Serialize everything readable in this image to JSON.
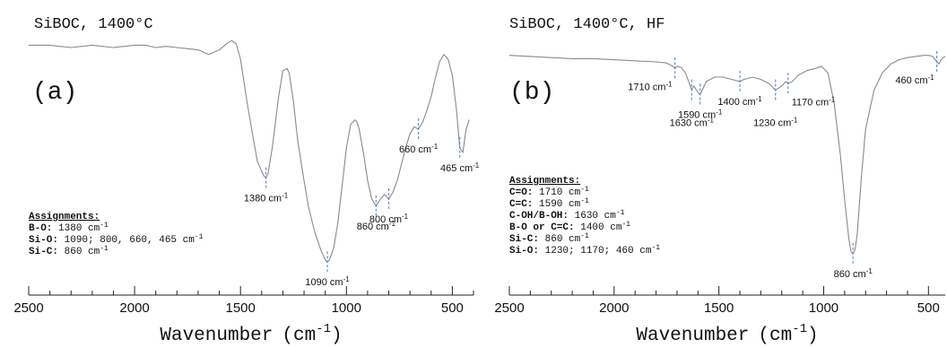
{
  "chart_data": [
    {
      "type": "line",
      "id": "a",
      "title": "SiBOC, 1400°C",
      "panel_label": "(a)",
      "xlabel": "Wavenumber",
      "xlabel_unit": "(cm",
      "xlabel_exp": "-1",
      "xlabel_close": ")",
      "xlim": [
        2500,
        400
      ],
      "x_reversed": true,
      "ylim": [
        0,
        1
      ],
      "yaxis_shown": false,
      "grid": false,
      "ticks": [
        "2500",
        "2000",
        "1500",
        "1000",
        "500"
      ],
      "tick_values": [
        2500,
        2000,
        1500,
        1000,
        500
      ],
      "series": [
        {
          "x": [
            2500,
            2400,
            2300,
            2200,
            2100,
            2000,
            1950,
            1900,
            1850,
            1800,
            1750,
            1700,
            1650,
            1600,
            1560,
            1540,
            1520,
            1500,
            1470,
            1440,
            1420,
            1400,
            1390,
            1380,
            1370,
            1350,
            1320,
            1300,
            1280,
            1270,
            1250,
            1230,
            1200,
            1180,
            1150,
            1120,
            1100,
            1090,
            1080,
            1060,
            1040,
            1020,
            1000,
            980,
            960,
            950,
            940,
            920,
            900,
            880,
            860,
            840,
            820,
            800,
            780,
            760,
            740,
            720,
            700,
            680,
            660,
            640,
            620,
            600,
            580,
            560,
            540,
            520,
            500,
            480,
            465,
            450,
            435,
            420
          ],
          "y": [
            0.96,
            0.96,
            0.95,
            0.96,
            0.95,
            0.96,
            0.96,
            0.95,
            0.955,
            0.95,
            0.945,
            0.94,
            0.92,
            0.94,
            0.97,
            0.98,
            0.965,
            0.9,
            0.72,
            0.56,
            0.46,
            0.42,
            0.4,
            0.39,
            0.41,
            0.52,
            0.74,
            0.85,
            0.86,
            0.84,
            0.72,
            0.55,
            0.38,
            0.27,
            0.16,
            0.08,
            0.04,
            0.03,
            0.04,
            0.09,
            0.2,
            0.36,
            0.52,
            0.62,
            0.64,
            0.63,
            0.6,
            0.5,
            0.38,
            0.3,
            0.27,
            0.3,
            0.32,
            0.3,
            0.33,
            0.38,
            0.45,
            0.52,
            0.58,
            0.61,
            0.6,
            0.63,
            0.68,
            0.74,
            0.82,
            0.89,
            0.92,
            0.9,
            0.83,
            0.68,
            0.52,
            0.5,
            0.6,
            0.64
          ]
        }
      ],
      "annotations": [
        {
          "x": 1380,
          "y": 0.39,
          "label": "1380 cm",
          "sup": "-1",
          "side": "below"
        },
        {
          "x": 1090,
          "y": 0.03,
          "label": "1090 cm",
          "sup": "-1",
          "side": "below"
        },
        {
          "x": 860,
          "y": 0.27,
          "label": "860 cm",
          "sup": "-1",
          "side": "below"
        },
        {
          "x": 800,
          "y": 0.3,
          "label": "800 cm",
          "sup": "-1",
          "side": "below"
        },
        {
          "x": 660,
          "y": 0.6,
          "label": "660 cm",
          "sup": "-1",
          "side": "below"
        },
        {
          "x": 465,
          "y": 0.52,
          "label": "465 cm",
          "sup": "-1",
          "side": "below"
        }
      ],
      "assignments": {
        "heading": "Assignments:",
        "items": [
          {
            "key": "B-O:",
            "value": " 1380 cm",
            "sup": "-1"
          },
          {
            "key": "Si-O:",
            "value": " 1090; 800, 660, 465 cm",
            "sup": "-1"
          },
          {
            "key": "Si-C:",
            "value": " 860 cm",
            "sup": "-1"
          }
        ]
      }
    },
    {
      "type": "line",
      "id": "b",
      "title": "SiBOC, 1400°C, HF",
      "panel_label": "(b)",
      "xlabel": "Wavenumber",
      "xlabel_unit": "(cm",
      "xlabel_exp": "-1",
      "xlabel_close": ")",
      "xlim": [
        2500,
        420
      ],
      "x_reversed": true,
      "ylim": [
        0,
        1
      ],
      "yaxis_shown": false,
      "grid": false,
      "ticks": [
        "2500",
        "2000",
        "1500",
        "1000",
        "500"
      ],
      "tick_values": [
        2500,
        2000,
        1500,
        1000,
        500
      ],
      "series": [
        {
          "x": [
            2500,
            2400,
            2300,
            2200,
            2100,
            2000,
            1900,
            1800,
            1750,
            1720,
            1710,
            1700,
            1680,
            1660,
            1640,
            1630,
            1620,
            1600,
            1590,
            1580,
            1560,
            1520,
            1480,
            1440,
            1400,
            1380,
            1340,
            1300,
            1260,
            1230,
            1200,
            1180,
            1170,
            1150,
            1120,
            1080,
            1040,
            1010,
            980,
            950,
            920,
            900,
            880,
            870,
            860,
            850,
            840,
            820,
            800,
            760,
            720,
            680,
            640,
            600,
            560,
            520,
            500,
            480,
            460,
            450,
            440,
            430,
            420
          ],
          "y": [
            0.96,
            0.955,
            0.95,
            0.945,
            0.945,
            0.94,
            0.935,
            0.93,
            0.925,
            0.91,
            0.9,
            0.91,
            0.905,
            0.88,
            0.83,
            0.8,
            0.82,
            0.79,
            0.78,
            0.8,
            0.84,
            0.86,
            0.86,
            0.85,
            0.84,
            0.85,
            0.86,
            0.85,
            0.83,
            0.8,
            0.82,
            0.84,
            0.83,
            0.84,
            0.87,
            0.89,
            0.9,
            0.91,
            0.88,
            0.74,
            0.5,
            0.3,
            0.12,
            0.06,
            0.05,
            0.07,
            0.14,
            0.4,
            0.62,
            0.8,
            0.88,
            0.92,
            0.94,
            0.95,
            0.955,
            0.96,
            0.96,
            0.955,
            0.93,
            0.92,
            0.94,
            0.95,
            0.955
          ]
        }
      ],
      "annotations": [
        {
          "x": 1710,
          "y": 0.9,
          "label": "1710 cm",
          "sup": "-1",
          "side": "below-left"
        },
        {
          "x": 1630,
          "y": 0.8,
          "label": "1630 cm",
          "sup": "-1",
          "side": "below-far"
        },
        {
          "x": 1590,
          "y": 0.78,
          "label": "1590 cm",
          "sup": "-1",
          "side": "below"
        },
        {
          "x": 1400,
          "y": 0.84,
          "label": "1400 cm",
          "sup": "-1",
          "side": "below"
        },
        {
          "x": 1230,
          "y": 0.8,
          "label": "1230 cm",
          "sup": "-1",
          "side": "below-far"
        },
        {
          "x": 1170,
          "y": 0.83,
          "label": "1170 cm",
          "sup": "-1",
          "side": "below-right"
        },
        {
          "x": 860,
          "y": 0.05,
          "label": "860 cm",
          "sup": "-1",
          "side": "below"
        },
        {
          "x": 460,
          "y": 0.93,
          "label": "460 cm",
          "sup": "-1",
          "side": "below-left"
        }
      ],
      "assignments": {
        "heading": "Assignments:",
        "items": [
          {
            "key": "C=O:",
            "value": " 1710 cm",
            "sup": "-1"
          },
          {
            "key": "C=C:",
            "value": " 1590 cm",
            "sup": "-1"
          },
          {
            "key": "C-OH/B-OH:",
            "value": " 1630 cm",
            "sup": "-1"
          },
          {
            "key": "B-O or C=C:",
            "value": " 1400 cm",
            "sup": "-1"
          },
          {
            "key": "Si-C:",
            "value": " 860 cm",
            "sup": "-1"
          },
          {
            "key": "Si-O:",
            "value": " 1230; 1170; 460 cm",
            "sup": "-1"
          }
        ]
      }
    }
  ],
  "colors": {
    "line": "#8a8a8a",
    "marker": "#6b8fc8",
    "axis": "#222222",
    "text": "#111111"
  }
}
